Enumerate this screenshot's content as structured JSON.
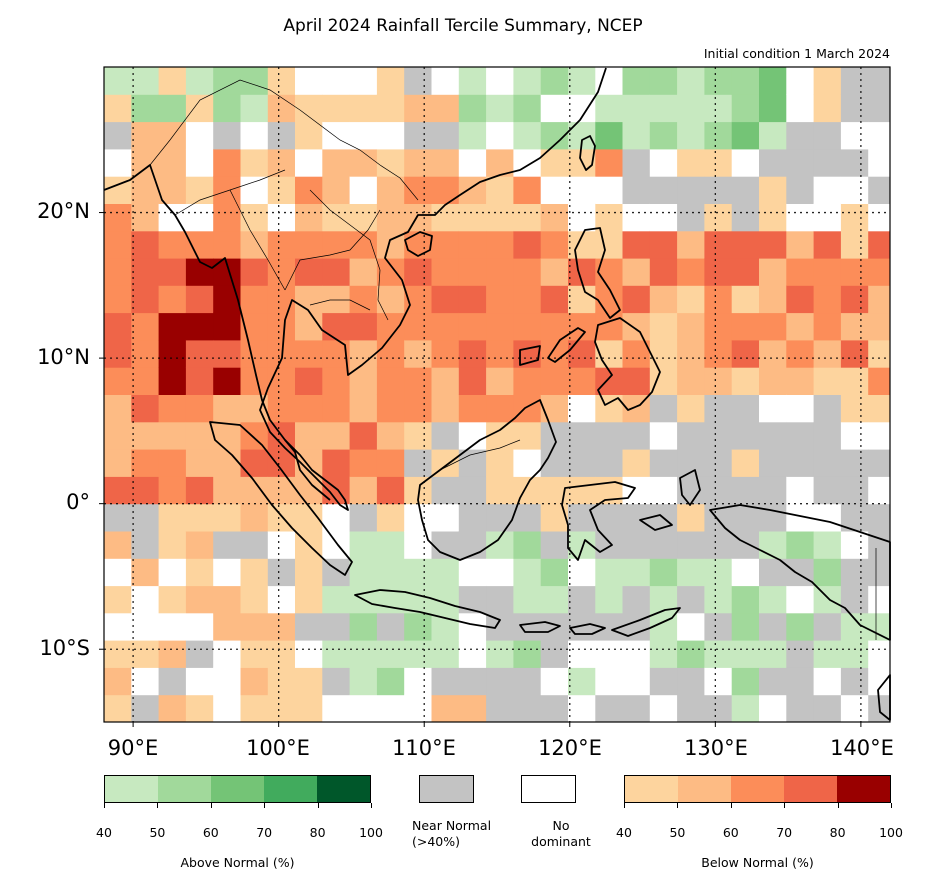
{
  "title": "April 2024 Rainfall Tercile Summary, NCEP",
  "subtitle": "Initial condition 1 March 2024",
  "lat_labels": [
    "20°N",
    "10°N",
    "0°",
    "10°S"
  ],
  "lon_labels": [
    "90°E",
    "100°E",
    "110°E",
    "120°E",
    "130°E",
    "140°E"
  ],
  "legend": {
    "above_normal": {
      "label": "Above Normal (%)",
      "ticks": [
        "40",
        "50",
        "60",
        "70",
        "80",
        "100"
      ],
      "colors": [
        "#c7e9c0",
        "#a1d99b",
        "#74c476",
        "#41ab5d",
        "#00572a"
      ]
    },
    "near_normal": {
      "label_line1": "Near Normal",
      "label_line2": "(>40%)",
      "color": "#c3c3c3"
    },
    "no_dominant": {
      "label_line1": "No",
      "label_line2": "dominant",
      "color": "#ffffff"
    },
    "below_normal": {
      "label": "Below Normal (%)",
      "ticks": [
        "40",
        "50",
        "60",
        "70",
        "80",
        "100"
      ],
      "colors": [
        "#fdd49e",
        "#fdbb84",
        "#fc8d59",
        "#ef6548",
        "#990000"
      ]
    }
  },
  "map": {
    "extent": {
      "lon_min": 88,
      "lon_max": 142,
      "lat_min": -15,
      "lat_max": 30
    },
    "category_colors": {
      "W": "#ffffff",
      "G": "#c3c3c3",
      "a": "#c7e9c0",
      "b": "#a1d99b",
      "c": "#74c476",
      "d": "#41ab5d",
      "e": "#00572a",
      "1": "#fdd49e",
      "2": "#fdbb84",
      "3": "#fc8d59",
      "4": "#ef6548",
      "5": "#990000"
    }
  }
}
